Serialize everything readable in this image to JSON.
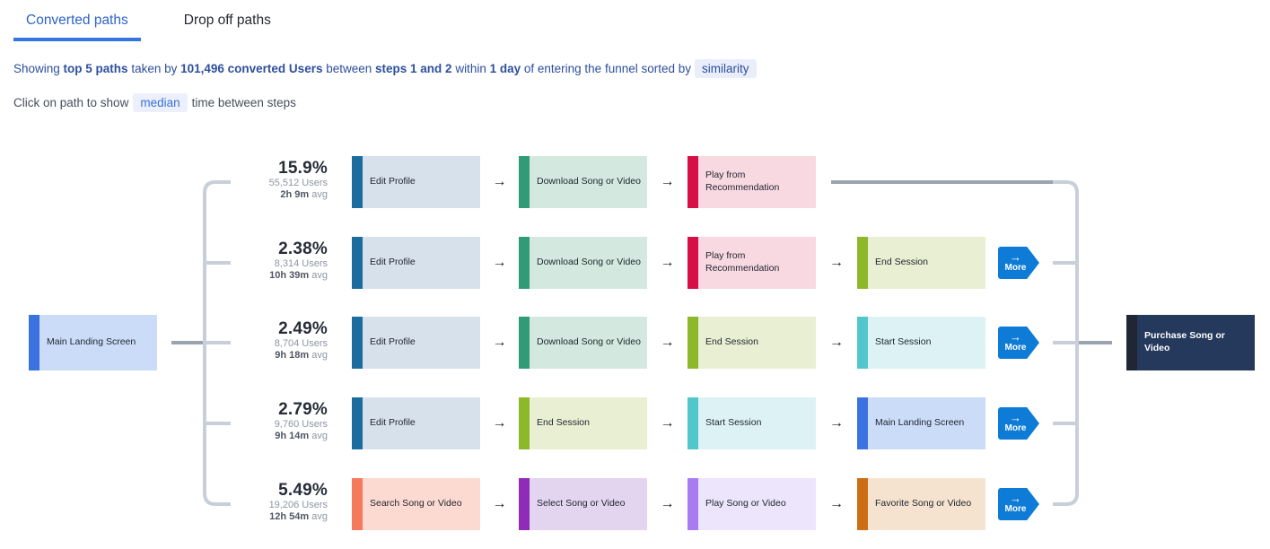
{
  "tabs": {
    "converted": "Converted paths",
    "dropoff": "Drop off paths"
  },
  "summary": {
    "segments": [
      {
        "text": "Showing ",
        "bold": false
      },
      {
        "text": "top 5 paths",
        "bold": true
      },
      {
        "text": " taken by ",
        "bold": false
      },
      {
        "text": "101,496 converted Users",
        "bold": true
      },
      {
        "text": " between ",
        "bold": false
      },
      {
        "text": "steps 1 and 2",
        "bold": true
      },
      {
        "text": " within ",
        "bold": false
      },
      {
        "text": "1 day",
        "bold": true
      },
      {
        "text": " of entering the funnel sorted by",
        "bold": false
      }
    ],
    "sort_pill": "similarity"
  },
  "hint": {
    "before": "Click on path to show",
    "pill": "median",
    "after": "time between steps"
  },
  "labels": {
    "more": "More",
    "avg_suffix": " avg",
    "arrow_glyph": "→"
  },
  "start_node_event": "main_landing_screen",
  "end_node_event": "purchase_song_or_video",
  "events": {
    "edit_profile": {
      "label": "Edit Profile",
      "stripe": "#1b6d9d",
      "bg": "#d7e1eb"
    },
    "download_song_or_video": {
      "label": "Download Song or Video",
      "stripe": "#2f9c77",
      "bg": "#d3e9e0"
    },
    "play_from_recommendation": {
      "label": "Play from Recommendation",
      "stripe": "#d60f45",
      "bg": "#f8d8e1"
    },
    "end_session": {
      "label": "End Session",
      "stripe": "#8db82a",
      "bg": "#e9efd2"
    },
    "start_session": {
      "label": "Start Session",
      "stripe": "#52c6cd",
      "bg": "#dcf2f4"
    },
    "main_landing_screen": {
      "label": "Main Landing Screen",
      "stripe": "#3a72df",
      "bg": "#cbdcf8"
    },
    "search_song_or_video": {
      "label": "Search Song or Video",
      "stripe": "#f47a5b",
      "bg": "#fcdad1"
    },
    "select_song_or_video": {
      "label": "Select Song or Video",
      "stripe": "#8e2bb8",
      "bg": "#e3d4f0"
    },
    "play_song_or_video": {
      "label": "Play Song or Video",
      "stripe": "#a97bf0",
      "bg": "#ece5fb"
    },
    "favorite_song_or_video": {
      "label": "Favorite Song or Video",
      "stripe": "#cc6e16",
      "bg": "#f5e3cf"
    },
    "purchase_song_or_video": {
      "label": "Purchase Song or Video",
      "stripe": "#1f2737",
      "bg": "#25395c",
      "text": "#ffffff"
    }
  },
  "paths": [
    {
      "percent": "15.9%",
      "users": "55,512 Users",
      "avg": "2h 9m",
      "more": false,
      "steps": [
        "edit_profile",
        "download_song_or_video",
        "play_from_recommendation"
      ]
    },
    {
      "percent": "2.38%",
      "users": "8,314 Users",
      "avg": "10h 39m",
      "more": true,
      "steps": [
        "edit_profile",
        "download_song_or_video",
        "play_from_recommendation",
        "end_session"
      ]
    },
    {
      "percent": "2.49%",
      "users": "8,704 Users",
      "avg": "9h 18m",
      "more": true,
      "steps": [
        "edit_profile",
        "download_song_or_video",
        "end_session",
        "start_session"
      ]
    },
    {
      "percent": "2.79%",
      "users": "9,760 Users",
      "avg": "9h 14m",
      "more": true,
      "steps": [
        "edit_profile",
        "end_session",
        "start_session",
        "main_landing_screen"
      ]
    },
    {
      "percent": "5.49%",
      "users": "19,206 Users",
      "avg": "12h 54m",
      "more": true,
      "steps": [
        "search_song_or_video",
        "select_song_or_video",
        "play_song_or_video",
        "favorite_song_or_video"
      ]
    }
  ],
  "colors": {
    "tab_active": "#2d63c8",
    "tab_underline": "#3574e3",
    "summary_text": "#2d4f9e",
    "connector_light": "#c7cfd9",
    "connector_dark": "#9aa3b0",
    "more_button": "#0e7cd7"
  }
}
